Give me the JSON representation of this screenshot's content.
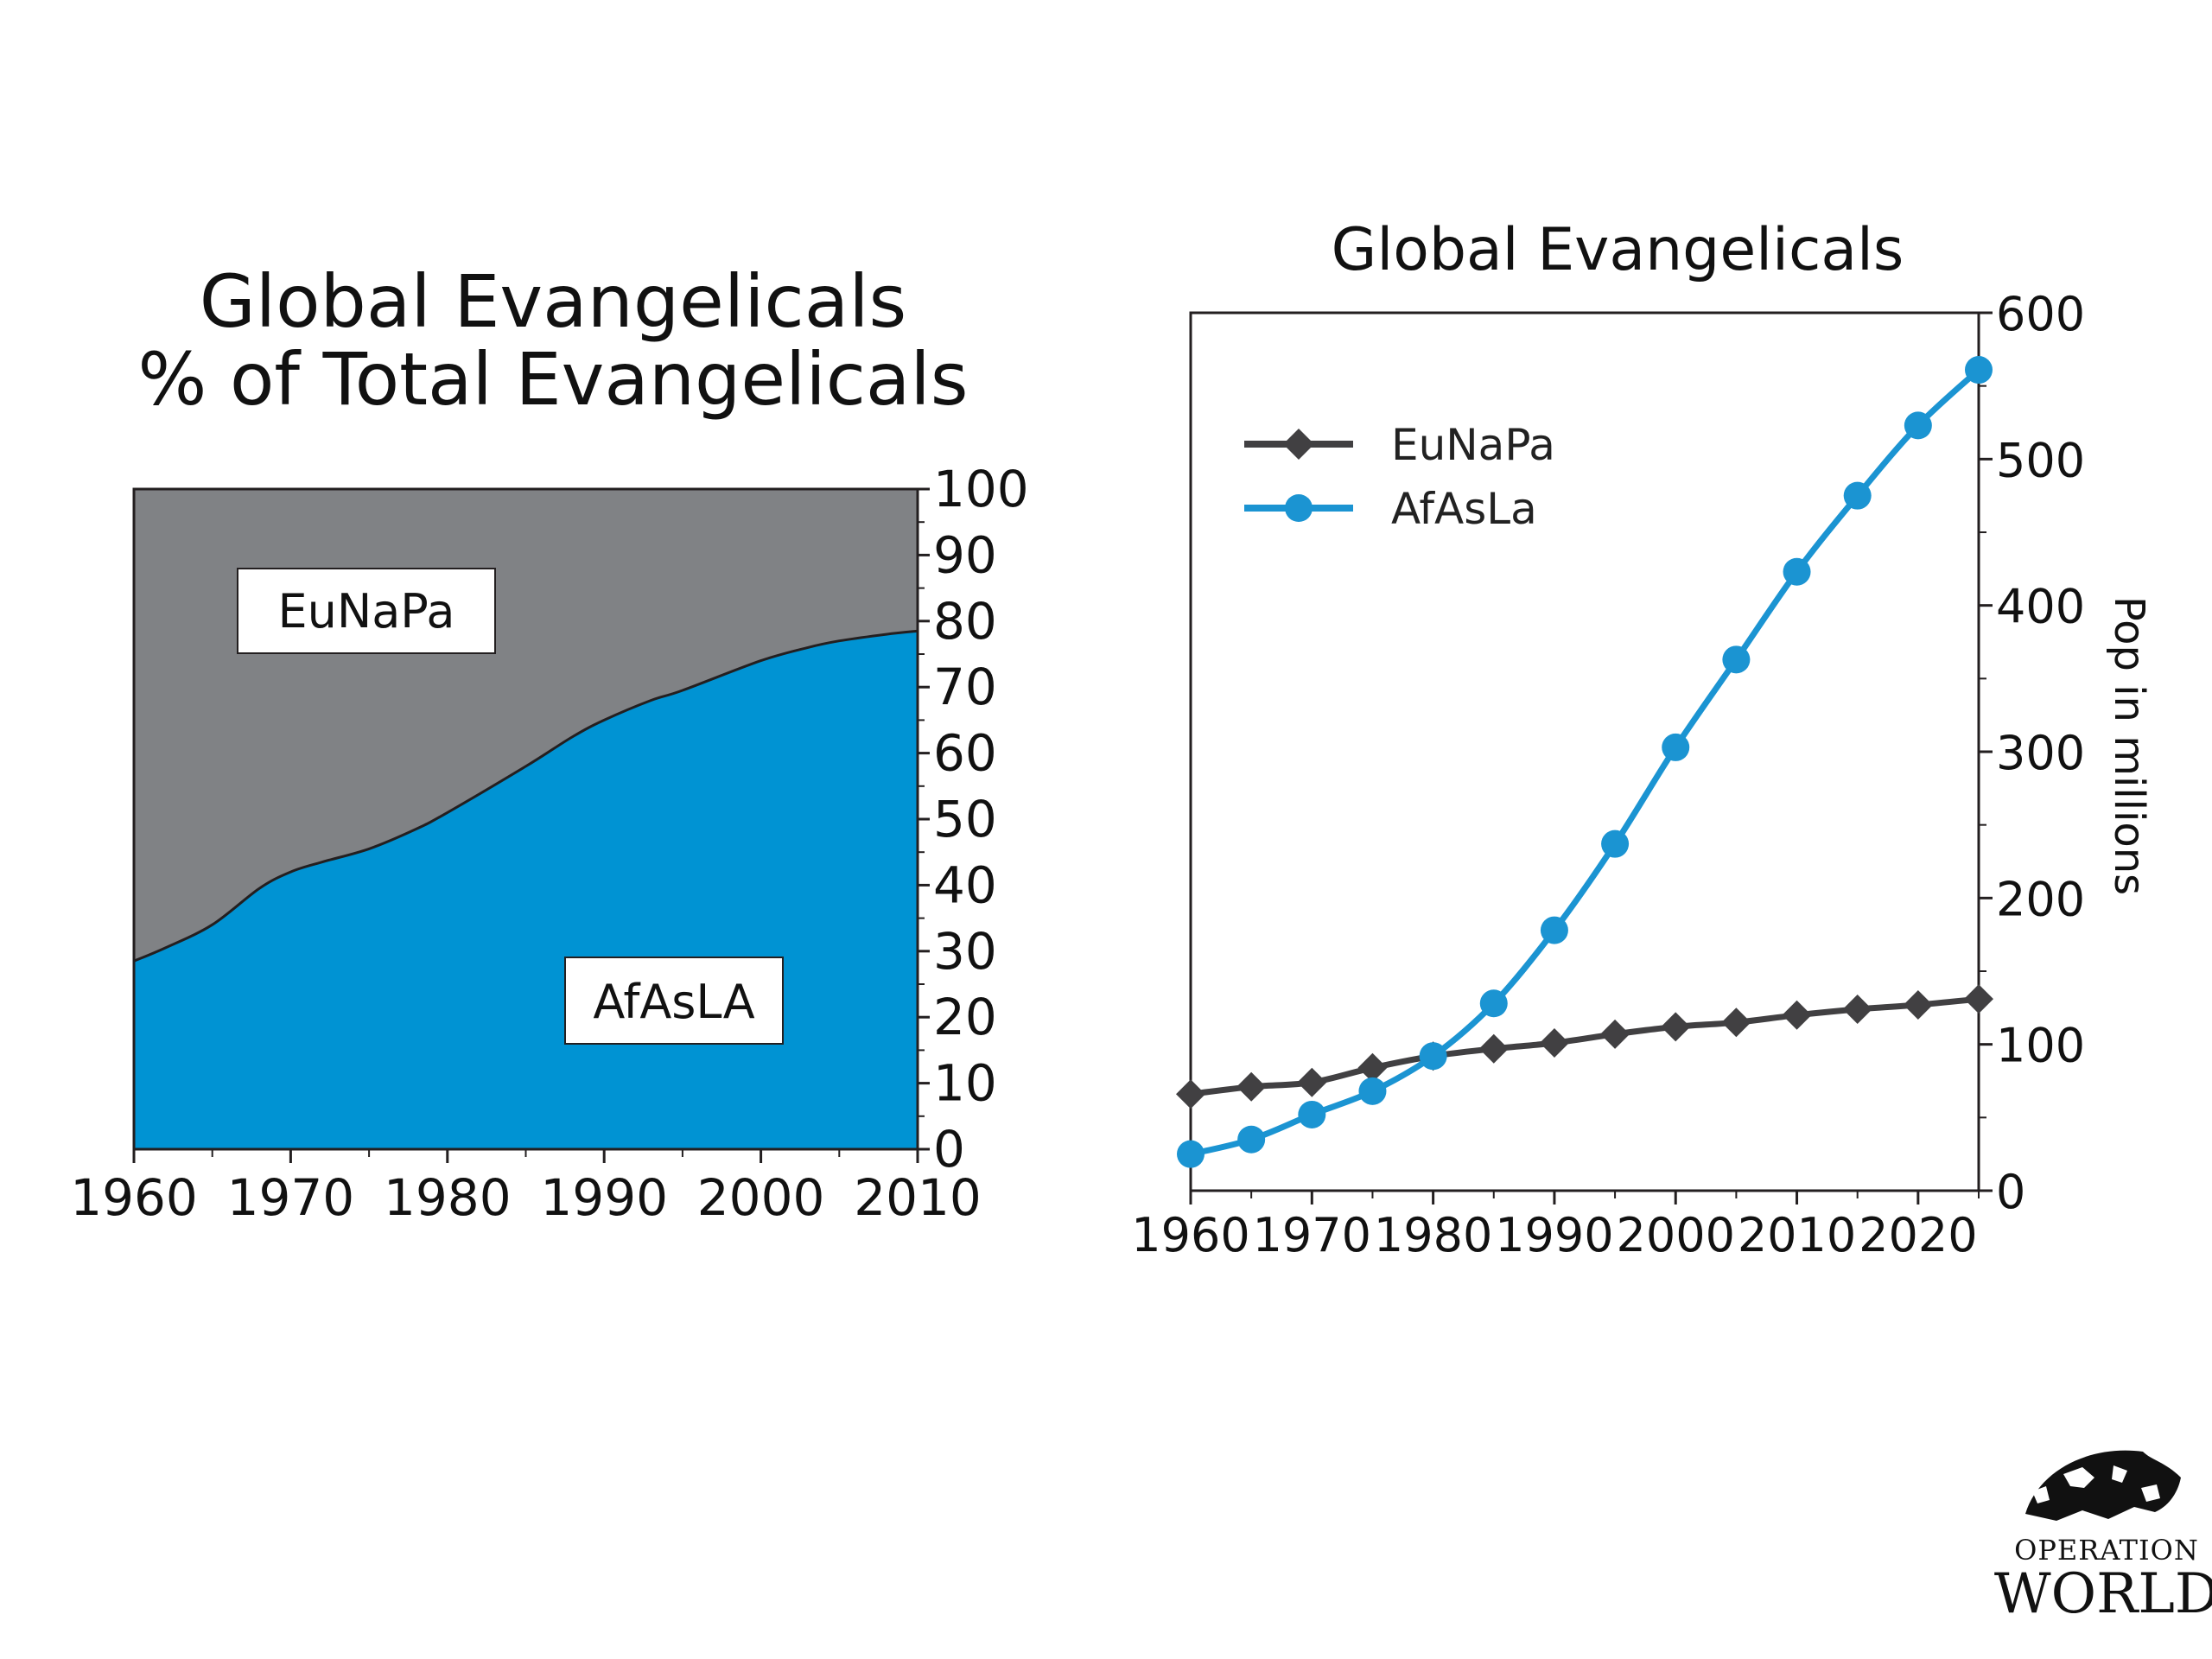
{
  "colors": {
    "eunapa_area": "#808285",
    "afasla_area": "#0093D3",
    "eunapa_line": "#414042",
    "afasla_line": "#1B94D2",
    "axis": "#231F20",
    "label_box_border": "#231F20"
  },
  "chart_data": [
    {
      "type": "area",
      "stacked": true,
      "percent": true,
      "title": "Global Evangelicals",
      "subtitle": "% of Total Evangelicals",
      "x": [
        1960,
        1962,
        1965,
        1968,
        1970,
        1972,
        1975,
        1978,
        1980,
        1985,
        1988,
        1990,
        1993,
        1995,
        2000,
        2003,
        2005,
        2008,
        2010
      ],
      "series": [
        {
          "name": "AfAsLA",
          "values": [
            28.5,
            30.5,
            34,
            39.5,
            42,
            43.5,
            45.5,
            48.5,
            51,
            58,
            62.5,
            65,
            68,
            69.5,
            74,
            76,
            77,
            78,
            78.5
          ],
          "color": "#0093D3"
        },
        {
          "name": "EuNaPa",
          "values": [
            71.5,
            69.5,
            66,
            60.5,
            58,
            56.5,
            54.5,
            51.5,
            49,
            42,
            37.5,
            35,
            32,
            30.5,
            26,
            24,
            23,
            22,
            21.5
          ],
          "color": "#808285"
        }
      ],
      "xlim": [
        1960,
        2010
      ],
      "ylim": [
        0,
        100
      ],
      "x_ticks": [
        "1960",
        "1970",
        "1980",
        "1990",
        "2000",
        "2010"
      ],
      "y_ticks": [
        "0",
        "10",
        "20",
        "30",
        "40",
        "50",
        "60",
        "70",
        "80",
        "90",
        "100"
      ],
      "y_axis_side": "right",
      "grid": false,
      "labels": [
        "EuNaPa",
        "AfAsLA"
      ]
    },
    {
      "type": "line",
      "title": "Global Evangelicals",
      "ylabel": "Pop in millions",
      "x": [
        1960,
        1965,
        1970,
        1975,
        1980,
        1985,
        1990,
        1995,
        2000,
        2005,
        2010,
        2015,
        2020,
        2025
      ],
      "series": [
        {
          "name": "EuNaPa",
          "marker": "diamond",
          "color": "#414042",
          "values": [
            66,
            71,
            74,
            84,
            92,
            97,
            101,
            107,
            112,
            115,
            120,
            124,
            127,
            131
          ]
        },
        {
          "name": "AfAsLA_",
          "marker": "circle",
          "color": "#1B94D2",
          "values": [
            25,
            35,
            52,
            68,
            92,
            128,
            178,
            237,
            303,
            363,
            423,
            475,
            523,
            561
          ]
        }
      ],
      "xlim": [
        1960,
        2025
      ],
      "ylim": [
        0,
        600
      ],
      "x_ticks": [
        "1960",
        "1970",
        "1980",
        "1990",
        "2000",
        "2010",
        "2020"
      ],
      "y_ticks": [
        "0",
        "100",
        "200",
        "300",
        "400",
        "500",
        "600"
      ],
      "y_axis_side": "right",
      "grid": false,
      "legend": {
        "placement": "top-left",
        "entries": [
          "EuNaPa",
          "AfAsLa"
        ]
      }
    }
  ],
  "logo": {
    "line1": "OPERATION",
    "line2": "WORLD"
  }
}
